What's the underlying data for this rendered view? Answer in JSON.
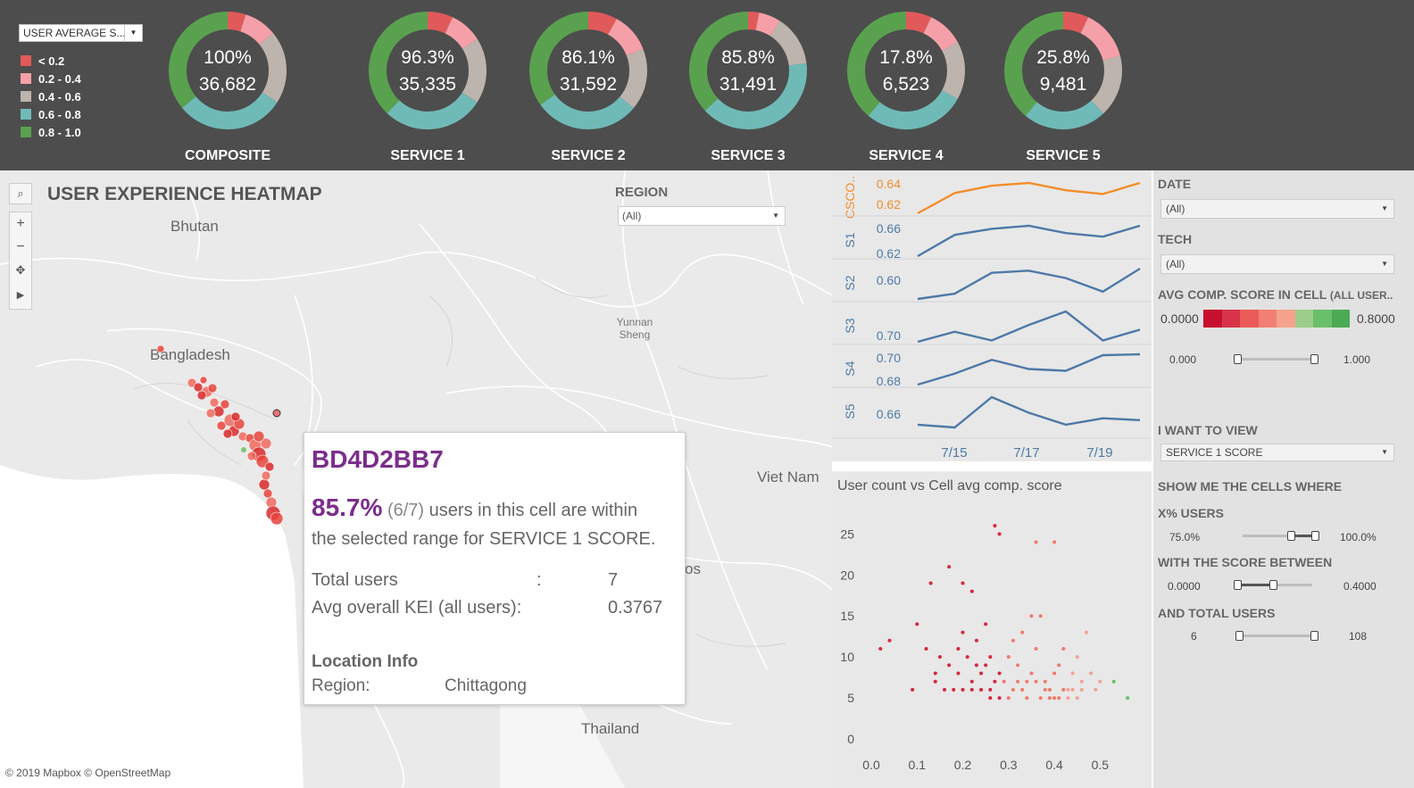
{
  "header": {
    "measure_dropdown": "USER AVERAGE S...",
    "legend": [
      {
        "label": "< 0.2",
        "color": "#e05a5a"
      },
      {
        "label": "0.2 - 0.4",
        "color": "#f5a0a8"
      },
      {
        "label": "0.4 - 0.6",
        "color": "#bdb4ad"
      },
      {
        "label": "0.6 - 0.8",
        "color": "#6fbab7"
      },
      {
        "label": "0.8 - 1.0",
        "color": "#59a14f"
      }
    ],
    "donuts": [
      {
        "label": "COMPOSITE",
        "pct": "100%",
        "count": "36,682",
        "segments": [
          0.05,
          0.09,
          0.2,
          0.3,
          0.36
        ]
      },
      {
        "label": "SERVICE 1",
        "pct": "96.3%",
        "count": "35,335",
        "segments": [
          0.07,
          0.09,
          0.18,
          0.28,
          0.38
        ]
      },
      {
        "label": "SERVICE 2",
        "pct": "86.1%",
        "count": "31,592",
        "segments": [
          0.08,
          0.11,
          0.17,
          0.29,
          0.35
        ]
      },
      {
        "label": "SERVICE 3",
        "pct": "85.8%",
        "count": "31,491",
        "segments": [
          0.03,
          0.06,
          0.14,
          0.4,
          0.37
        ]
      },
      {
        "label": "SERVICE 4",
        "pct": "17.8%",
        "count": "6,523",
        "segments": [
          0.07,
          0.1,
          0.16,
          0.28,
          0.39
        ]
      },
      {
        "label": "SERVICE 5",
        "pct": "25.8%",
        "count": "9,481",
        "segments": [
          0.07,
          0.14,
          0.17,
          0.23,
          0.39
        ]
      }
    ]
  },
  "map": {
    "title": "USER EXPERIENCE HEATMAP",
    "region_label": "REGION",
    "region_value": "(All)",
    "places": {
      "bhutan": "Bhutan",
      "bangladesh": "Bangladesh",
      "yunnan": "Yunnan\nSheng",
      "vietnam": "Viet Nam",
      "thailand": "Thailand",
      "laos": "os"
    },
    "attribution": "© 2019 Mapbox © OpenStreetMap",
    "controls": {
      "zoom_in": "+",
      "zoom_out": "−",
      "play": "▶"
    }
  },
  "tooltip": {
    "cell_id": "BD4D2BB7",
    "pct": "85.7%",
    "fraction": "(6/7)",
    "line1_rest": "users in this cell are within",
    "line2": "the selected range for SERVICE 1 SCORE.",
    "total_users_label": "Total users",
    "total_users_sep": ":",
    "total_users_value": "7",
    "avg_kei_label": "Avg overall KEI (all users):",
    "avg_kei_value": "0.3767",
    "location_header": "Location Info",
    "region_label": "Region:",
    "region_value": "Chittagong"
  },
  "line_chart": {
    "x_labels": [
      "7/15",
      "7/17",
      "7/19"
    ],
    "rows": [
      {
        "name": "CSCO..",
        "color": "#f28e2b",
        "ticks": [
          "0.64",
          "0.62"
        ],
        "values": [
          0.612,
          0.634,
          0.642,
          0.645,
          0.637,
          0.633,
          0.645
        ]
      },
      {
        "name": "S1",
        "color": "#4e79a7",
        "ticks": [
          "0.66",
          "0.62"
        ],
        "values": [
          0.61,
          0.645,
          0.655,
          0.66,
          0.648,
          0.642,
          0.66
        ]
      },
      {
        "name": "S2",
        "color": "#4e79a7",
        "ticks": [
          "0.60"
        ],
        "values": [
          0.58,
          0.585,
          0.605,
          0.607,
          0.6,
          0.587,
          0.609
        ]
      },
      {
        "name": "S3",
        "color": "#4e79a7",
        "ticks": [
          "0.70"
        ],
        "values": [
          0.68,
          0.695,
          0.682,
          0.705,
          0.725,
          0.682,
          0.698
        ]
      },
      {
        "name": "S4",
        "color": "#4e79a7",
        "ticks": [
          "0.70",
          "0.68"
        ],
        "values": [
          0.668,
          0.68,
          0.695,
          0.685,
          0.683,
          0.7,
          0.701
        ]
      },
      {
        "name": "S5",
        "color": "#4e79a7",
        "ticks": [
          "0.66"
        ],
        "values": [
          0.655,
          0.652,
          0.685,
          0.668,
          0.655,
          0.662,
          0.66
        ]
      }
    ]
  },
  "scatter": {
    "title": "User count vs Cell avg comp. score",
    "x_ticks": [
      "0.0",
      "0.1",
      "0.2",
      "0.3",
      "0.4",
      "0.5"
    ],
    "y_ticks": [
      "0",
      "5",
      "10",
      "15",
      "20",
      "25"
    ],
    "points": [
      [
        0.02,
        11
      ],
      [
        0.04,
        12
      ],
      [
        0.1,
        14
      ],
      [
        0.13,
        19
      ],
      [
        0.12,
        11
      ],
      [
        0.09,
        6
      ],
      [
        0.14,
        8
      ],
      [
        0.15,
        10
      ],
      [
        0.17,
        21
      ],
      [
        0.2,
        19
      ],
      [
        0.22,
        18
      ],
      [
        0.19,
        8
      ],
      [
        0.2,
        13
      ],
      [
        0.23,
        12
      ],
      [
        0.25,
        14
      ],
      [
        0.26,
        10
      ],
      [
        0.27,
        26
      ],
      [
        0.28,
        25
      ],
      [
        0.24,
        8
      ],
      [
        0.22,
        6
      ],
      [
        0.26,
        6
      ],
      [
        0.28,
        8
      ],
      [
        0.3,
        10
      ],
      [
        0.31,
        12
      ],
      [
        0.32,
        9
      ],
      [
        0.33,
        6
      ],
      [
        0.34,
        5
      ],
      [
        0.35,
        8
      ],
      [
        0.36,
        11
      ],
      [
        0.37,
        15
      ],
      [
        0.38,
        7
      ],
      [
        0.39,
        6
      ],
      [
        0.4,
        5
      ],
      [
        0.41,
        9
      ],
      [
        0.42,
        11
      ],
      [
        0.43,
        6
      ],
      [
        0.44,
        8
      ],
      [
        0.45,
        10
      ],
      [
        0.46,
        6
      ],
      [
        0.47,
        13
      ],
      [
        0.48,
        8
      ],
      [
        0.36,
        24
      ],
      [
        0.4,
        24
      ],
      [
        0.3,
        5
      ],
      [
        0.28,
        5
      ],
      [
        0.26,
        5
      ],
      [
        0.24,
        6
      ],
      [
        0.22,
        7
      ],
      [
        0.2,
        6
      ],
      [
        0.18,
        6
      ],
      [
        0.16,
        6
      ],
      [
        0.14,
        7
      ],
      [
        0.32,
        7
      ],
      [
        0.34,
        7
      ],
      [
        0.36,
        7
      ],
      [
        0.38,
        6
      ],
      [
        0.4,
        8
      ],
      [
        0.42,
        6
      ],
      [
        0.44,
        6
      ],
      [
        0.46,
        7
      ],
      [
        0.33,
        13
      ],
      [
        0.35,
        15
      ],
      [
        0.29,
        7
      ],
      [
        0.31,
        6
      ],
      [
        0.27,
        7
      ],
      [
        0.25,
        9
      ],
      [
        0.23,
        9
      ],
      [
        0.21,
        10
      ],
      [
        0.19,
        11
      ],
      [
        0.17,
        9
      ],
      [
        0.53,
        7
      ],
      [
        0.56,
        5
      ],
      [
        0.49,
        6
      ],
      [
        0.37,
        5
      ],
      [
        0.39,
        5
      ],
      [
        0.41,
        5
      ],
      [
        0.43,
        5
      ],
      [
        0.45,
        5
      ],
      [
        0.5,
        7
      ]
    ],
    "colors": {
      "low": "#d7263d",
      "mid": "#f07a6a",
      "high": "#f3a195",
      "top": "#6abf69"
    }
  },
  "side": {
    "date_label": "DATE",
    "date_value": "(All)",
    "tech_label": "TECH",
    "tech_value": "(All)",
    "avg_label": "AVG COMP. SCORE IN CELL",
    "avg_label_small": "(ALL USER..",
    "gradient_min": "0.0000",
    "gradient_max": "0.8000",
    "gradient_colors": [
      "#c8102e",
      "#d9334a",
      "#ea5a57",
      "#f28072",
      "#f5a38b",
      "#9ccd8a",
      "#6abf69",
      "#4caa55"
    ],
    "range_min": "0.000",
    "range_max": "1.000",
    "view_label": "I WANT TO VIEW",
    "view_value": "SERVICE 1 SCORE",
    "show_label": "SHOW ME THE CELLS WHERE",
    "xpct_label": "X% USERS",
    "xpct_min": "75.0%",
    "xpct_max": "100.0%",
    "between_label": "WITH THE SCORE BETWEEN",
    "between_min": "0.0000",
    "between_max": "0.4000",
    "total_label": "AND TOTAL USERS",
    "total_min": "6",
    "total_max": "108"
  }
}
